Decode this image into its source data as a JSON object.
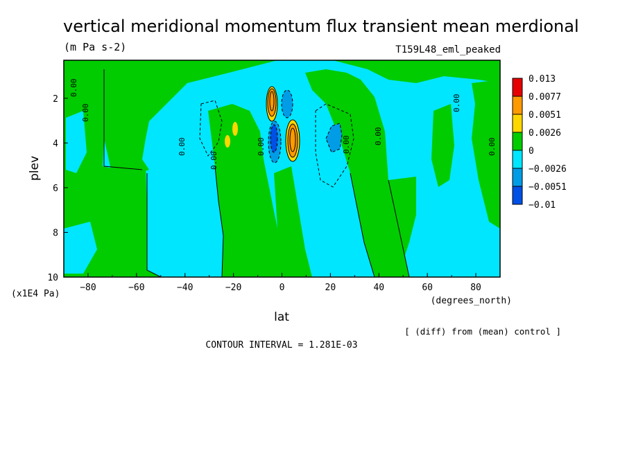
{
  "chart_data": {
    "type": "heatmap",
    "title": "vertical meridional momentum flux transient mean merdional",
    "subtitle": "(m Pa s-2)",
    "run_label": "T159L48_eml_peaked",
    "xlabel": "lat",
    "x_units": "(degrees_north)",
    "ylabel": "plev",
    "y_units": "(x1E4 Pa)",
    "xlim": [
      -90,
      90
    ],
    "ylim": [
      10,
      0.3
    ],
    "x_ticks": [
      -80,
      -60,
      -40,
      -20,
      0,
      20,
      40,
      60,
      80
    ],
    "y_ticks": [
      2,
      4,
      6,
      8,
      10
    ],
    "contour_interval_text": "CONTOUR INTERVAL = 1.281E-03",
    "diff_note": "[ (diff) from (mean) control ]",
    "zero_label": "0.00",
    "legend": {
      "placement": "right",
      "levels": [
        "0.013",
        "0.0077",
        "0.0051",
        "0.0026",
        "0",
        "−0.0026",
        "−0.0051",
        "−0.01"
      ],
      "colors": [
        "#e60000",
        "#ff9a00",
        "#ffd700",
        "#00cc00",
        "#00e6ff",
        "#009ce6",
        "#0050e6"
      ]
    },
    "colors": {
      "positive_small": "#00cc00",
      "negative_small": "#00e6ff",
      "negative_mid": "#009ce6",
      "negative_high": "#0050e6",
      "positive_mid": "#ffd700",
      "positive_high": "#ff9a00",
      "positive_max": "#e60000"
    },
    "features": [
      {
        "lat": -5,
        "plev": 2.3,
        "value": 0.0077
      },
      {
        "lat": 4,
        "plev": 3.9,
        "value": 0.0077
      },
      {
        "lat": -3,
        "plev": 4.0,
        "value": -0.0051
      },
      {
        "lat": 3,
        "plev": 2.4,
        "value": -0.0051
      },
      {
        "lat": 22,
        "plev": 3.4,
        "value": -0.0051
      },
      {
        "lat": -19,
        "plev": 3.3,
        "value": 0.0026
      },
      {
        "lat": -22,
        "plev": 4.2,
        "value": 0.0026
      }
    ]
  }
}
